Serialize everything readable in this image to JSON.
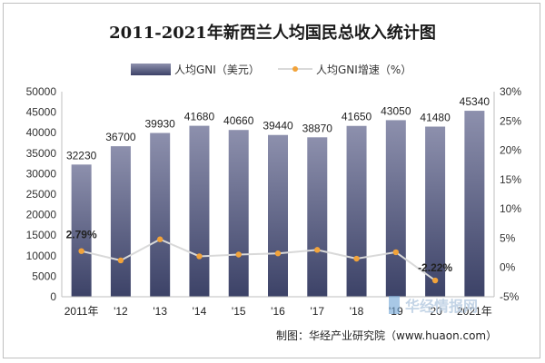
{
  "chart_data": {
    "type": "bar+line",
    "title": "2011-2021年新西兰人均国民总收入统计图",
    "categories": [
      "2011年",
      "'12",
      "'13",
      "'14",
      "'15",
      "'16",
      "'17",
      "'18",
      "'19",
      "'20",
      "2021年"
    ],
    "series": [
      {
        "name": "人均GNI（美元）",
        "type": "bar",
        "axis": "left",
        "values": [
          32230,
          36700,
          39930,
          41680,
          40660,
          39440,
          38870,
          41650,
          43050,
          41480,
          45340
        ],
        "data_labels": [
          "32230",
          "36700",
          "39930",
          "41680",
          "40660",
          "39440",
          "38870",
          "41650",
          "43050",
          "41480",
          "45340"
        ]
      },
      {
        "name": "人均GNI增速（%）",
        "type": "line",
        "axis": "right",
        "values": [
          2.79,
          1.2,
          4.8,
          1.9,
          2.2,
          2.4,
          3.0,
          1.5,
          2.6,
          -2.22,
          null
        ],
        "data_labels": [
          "2.79%",
          "",
          "",
          "",
          "",
          "",
          "",
          "",
          "",
          "-2.22%",
          ""
        ]
      }
    ],
    "y_left": {
      "lim": [
        0,
        50000
      ],
      "ticks": [
        0,
        5000,
        10000,
        15000,
        20000,
        25000,
        30000,
        35000,
        40000,
        45000,
        50000
      ],
      "tick_labels": [
        "0",
        "5000",
        "10000",
        "15000",
        "20000",
        "25000",
        "30000",
        "35000",
        "40000",
        "45000",
        "50000"
      ]
    },
    "y_right": {
      "lim": [
        -5,
        30
      ],
      "ticks": [
        -5,
        0,
        5,
        10,
        15,
        20,
        25,
        30
      ],
      "tick_labels": [
        "-5%",
        "0%",
        "5%",
        "10%",
        "15%",
        "20%",
        "25%",
        "30%"
      ]
    },
    "grid": false,
    "legend_position": "top-center",
    "colors": {
      "bar_top": "#8d90ad",
      "bar_bottom": "#3c4267",
      "line": "#d9d9d9",
      "marker": "#f2a33a"
    },
    "source": "制图：华经产业研究院（www.huaon.com）",
    "watermark": "华经情报网"
  }
}
